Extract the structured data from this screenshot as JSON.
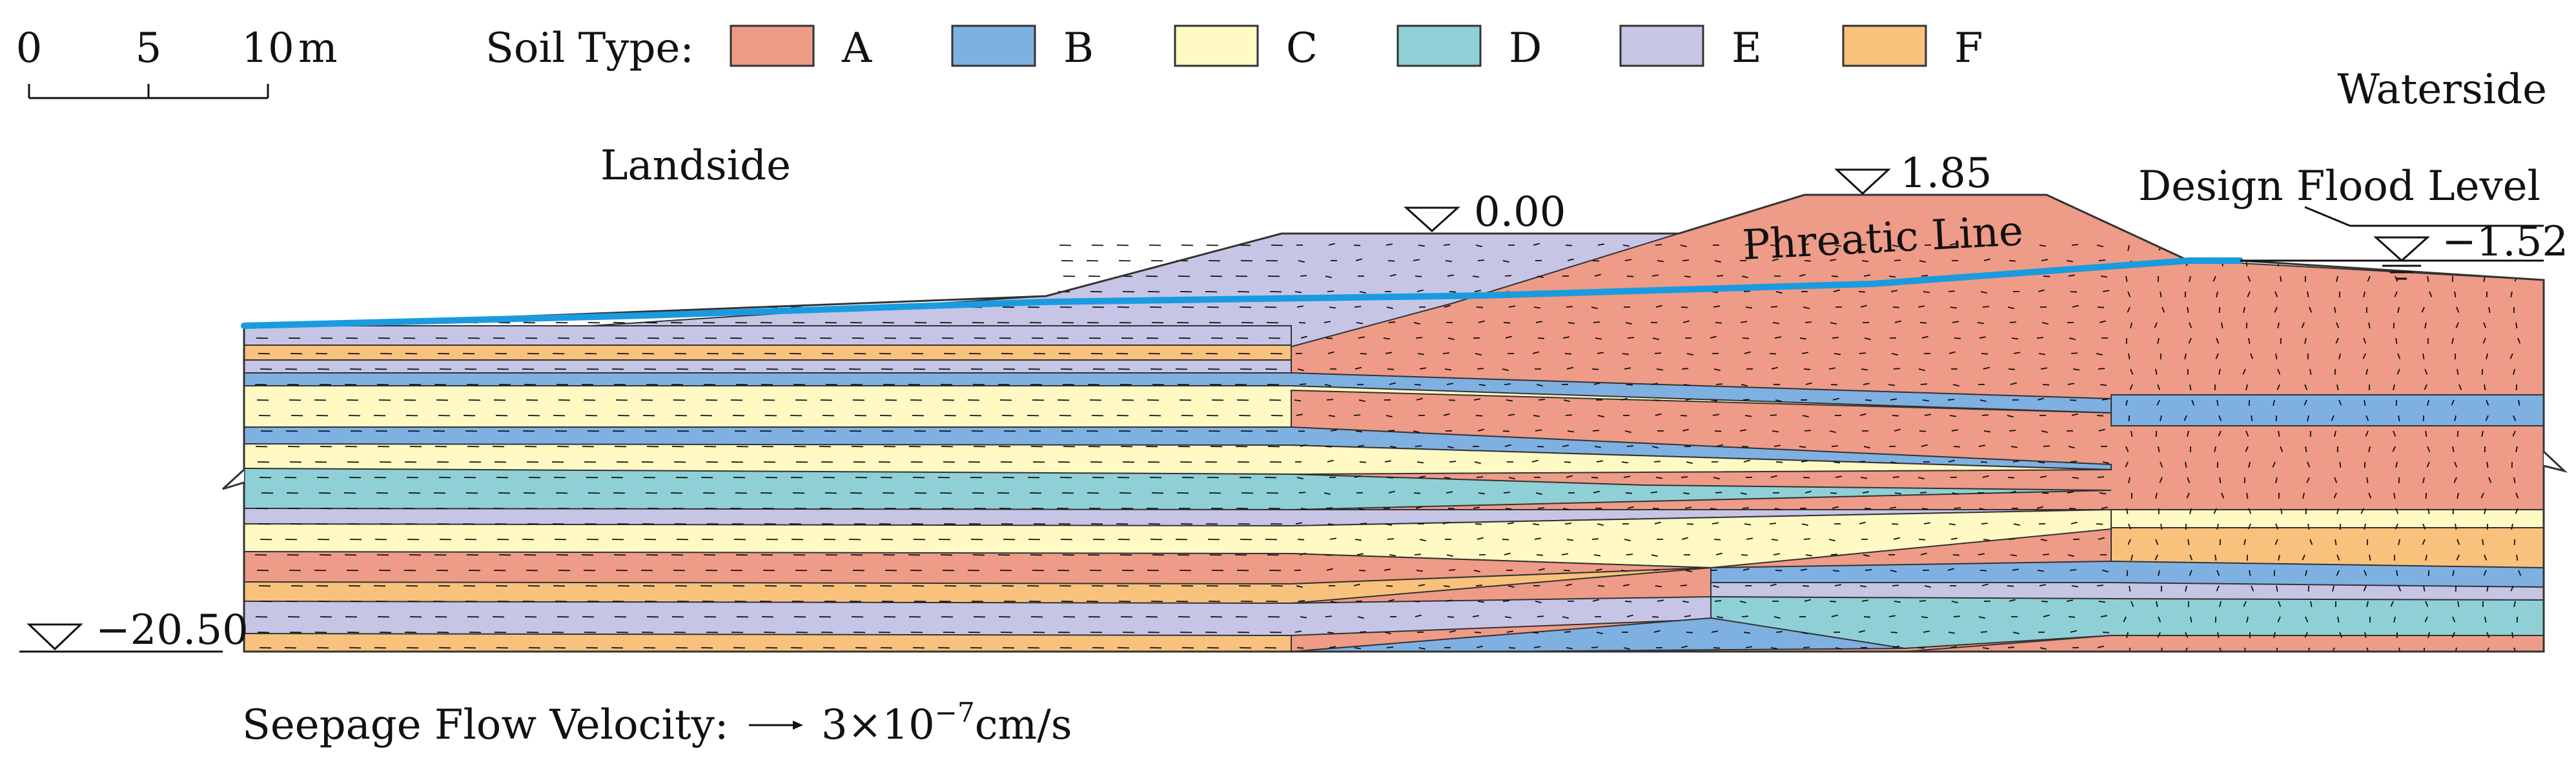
{
  "scale_bar": {
    "ticks": [
      "0",
      "5",
      "10"
    ],
    "unit": "m"
  },
  "legend": {
    "title": "Soil Type:",
    "items": [
      {
        "label": "A",
        "color": "#EE9B87"
      },
      {
        "label": "B",
        "color": "#7FB0E2"
      },
      {
        "label": "C",
        "color": "#FFF9C4"
      },
      {
        "label": "D",
        "color": "#8FD0D6"
      },
      {
        "label": "E",
        "color": "#C6C5E6"
      },
      {
        "label": "F",
        "color": "#F8C27C"
      }
    ]
  },
  "labels": {
    "landside": "Landside",
    "waterside": "Waterside",
    "design_flood": "Design Flood Level",
    "phreatic": "Phreatic Line"
  },
  "levels": {
    "crest": "1.85",
    "landside_berm": "0.00",
    "flood": "−1.52",
    "bottom": "−20.50"
  },
  "velocity": {
    "label": "Seepage Flow Velocity:",
    "value_prefix": "3×10",
    "exponent": "−7",
    "unit": "cm/s"
  },
  "colors": {
    "phreatic_line": "#1A9BE0",
    "outline": "#333333",
    "arrow": "#111111"
  }
}
